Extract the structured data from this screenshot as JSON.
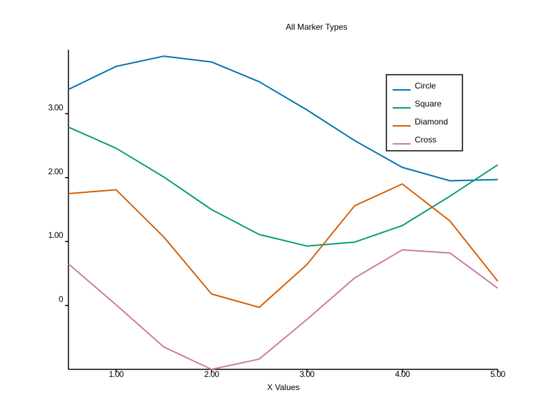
{
  "chart_data": {
    "type": "line",
    "title": "All Marker Types",
    "xlabel": "X Values",
    "ylabel": "",
    "xlim": [
      0.5,
      5.0
    ],
    "ylim": [
      -1.0,
      4.0
    ],
    "x_ticks": [
      {
        "value": 1.0,
        "label": "1.00"
      },
      {
        "value": 2.0,
        "label": "2.00"
      },
      {
        "value": 3.0,
        "label": "3.00"
      },
      {
        "value": 4.0,
        "label": "4.00"
      },
      {
        "value": 5.0,
        "label": "5.00"
      }
    ],
    "y_ticks": [
      {
        "value": 0,
        "label": "0"
      },
      {
        "value": 1.0,
        "label": "1.00"
      },
      {
        "value": 2.0,
        "label": "2.00"
      },
      {
        "value": 3.0,
        "label": "3.00"
      }
    ],
    "grid": false,
    "legend_position": "top-right",
    "x": [
      0.5,
      1.0,
      1.5,
      2.0,
      2.5,
      3.0,
      3.5,
      4.0,
      4.5,
      5.0
    ],
    "series": [
      {
        "name": "Circle",
        "color": "#0072b2",
        "values": [
          3.38,
          3.74,
          3.9,
          3.81,
          3.5,
          3.06,
          2.58,
          2.16,
          1.95,
          1.97
        ]
      },
      {
        "name": "Square",
        "color": "#009e73",
        "values": [
          2.79,
          2.46,
          2.01,
          1.5,
          1.11,
          0.93,
          0.99,
          1.25,
          1.71,
          2.2
        ]
      },
      {
        "name": "Diamond",
        "color": "#d55e00",
        "values": [
          1.75,
          1.81,
          1.07,
          0.18,
          -0.03,
          0.64,
          1.56,
          1.9,
          1.32,
          0.38
        ]
      },
      {
        "name": "Cross",
        "color": "#cc79a7",
        "values": [
          0.65,
          0.01,
          -0.65,
          -1.0,
          -0.84,
          -0.22,
          0.43,
          0.87,
          0.82,
          0.27
        ]
      }
    ]
  }
}
